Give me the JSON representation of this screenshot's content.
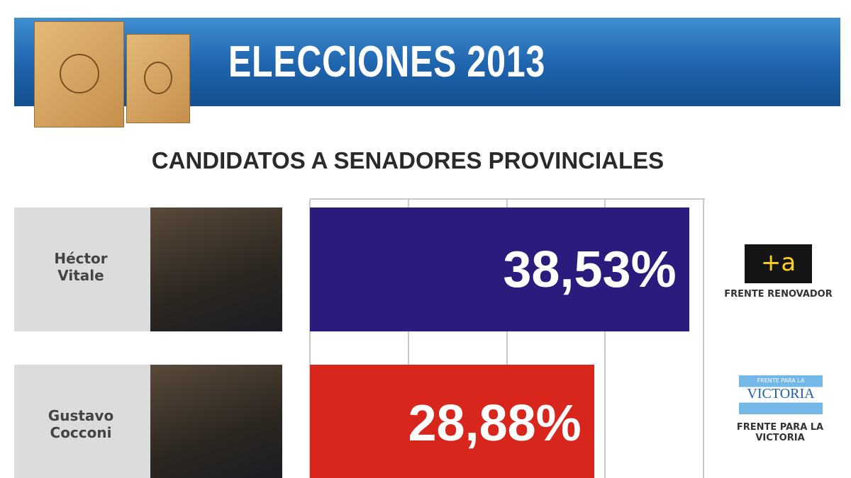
{
  "title": "ELECCIONES 2013",
  "chart_data": {
    "type": "bar",
    "orientation": "horizontal",
    "title": "CANDIDATOS A SENADORES PROVINCIALES",
    "categories": [
      "Héctor Vitale",
      "Gustavo Cocconi"
    ],
    "values": [
      38.53,
      28.88
    ],
    "value_labels": [
      "38,53%",
      "28,88%"
    ],
    "colors": [
      "#2b1b7d",
      "#d8261d"
    ],
    "parties": [
      "FRENTE RENOVADOR",
      "FRENTE PARA LA VICTORIA"
    ],
    "xlim": [
      0,
      40
    ],
    "grid": true
  },
  "logos": {
    "frente_renovador": "+a",
    "victoria_top": "FRENTE PARA LA",
    "victoria": "VICTORIA"
  }
}
